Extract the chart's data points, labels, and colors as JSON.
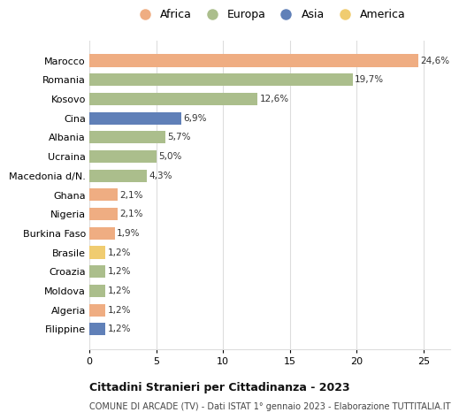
{
  "countries": [
    "Marocco",
    "Romania",
    "Kosovo",
    "Cina",
    "Albania",
    "Ucraina",
    "Macedonia d/N.",
    "Ghana",
    "Nigeria",
    "Burkina Faso",
    "Brasile",
    "Croazia",
    "Moldova",
    "Algeria",
    "Filippine"
  ],
  "values": [
    24.6,
    19.7,
    12.6,
    6.9,
    5.7,
    5.0,
    4.3,
    2.1,
    2.1,
    1.9,
    1.2,
    1.2,
    1.2,
    1.2,
    1.2
  ],
  "labels": [
    "24,6%",
    "19,7%",
    "12,6%",
    "6,9%",
    "5,7%",
    "5,0%",
    "4,3%",
    "2,1%",
    "2,1%",
    "1,9%",
    "1,2%",
    "1,2%",
    "1,2%",
    "1,2%",
    "1,2%"
  ],
  "colors": [
    "#EFAD82",
    "#ABBE8C",
    "#ABBE8C",
    "#6080B8",
    "#ABBE8C",
    "#ABBE8C",
    "#ABBE8C",
    "#EFAD82",
    "#EFAD82",
    "#EFAD82",
    "#F0CC70",
    "#ABBE8C",
    "#ABBE8C",
    "#EFAD82",
    "#6080B8"
  ],
  "legend_labels": [
    "Africa",
    "Europa",
    "Asia",
    "America"
  ],
  "legend_colors": [
    "#EFAD82",
    "#ABBE8C",
    "#6080B8",
    "#F0CC70"
  ],
  "title": "Cittadini Stranieri per Cittadinanza - 2023",
  "subtitle": "COMUNE DI ARCADE (TV) - Dati ISTAT 1° gennaio 2023 - Elaborazione TUTTITALIA.IT",
  "xlim": [
    0,
    27
  ],
  "xticks": [
    0,
    5,
    10,
    15,
    20,
    25
  ],
  "background_color": "#ffffff",
  "grid_color": "#dddddd",
  "bar_height": 0.65
}
